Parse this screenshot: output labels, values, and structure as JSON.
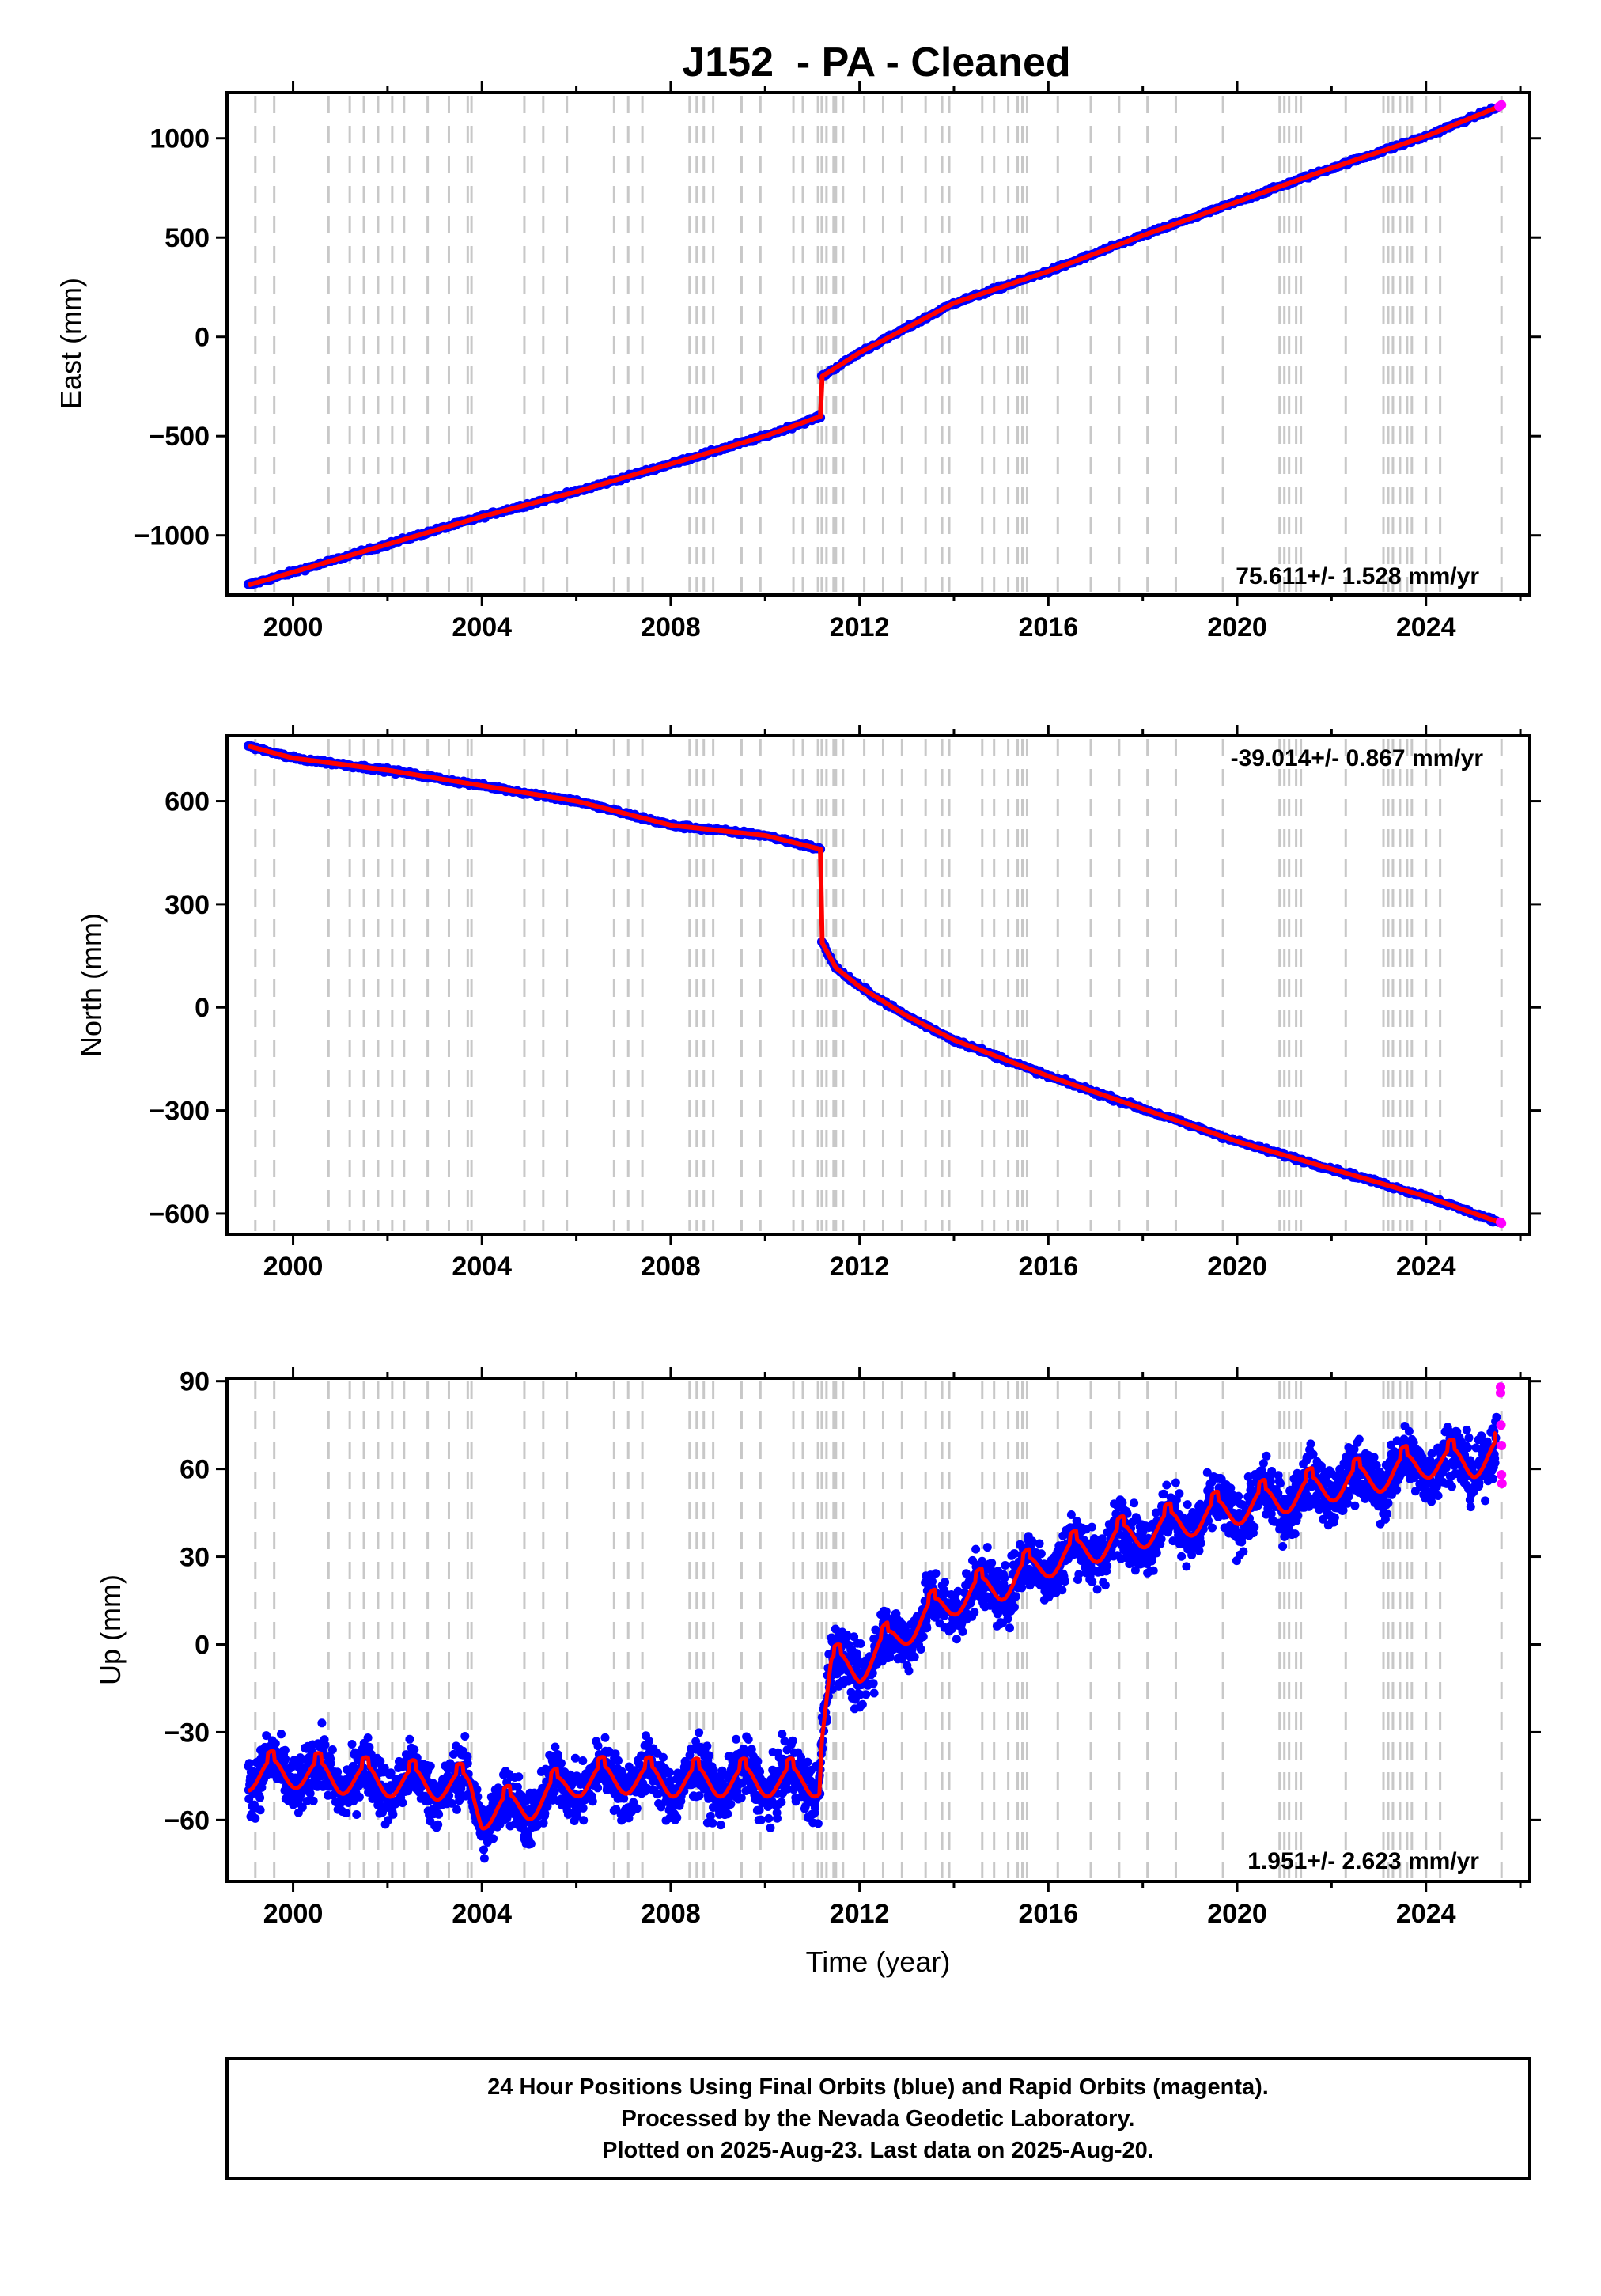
{
  "figure": {
    "title": "J152  - PA - Cleaned",
    "xlabel": "Time (year)",
    "footer": [
      "24 Hour Positions Using Final Orbits (blue) and Rapid Orbits (magenta).",
      "Processed by the Nevada Geodetic Laboratory.",
      "Plotted on 2025-Aug-23. Last data on 2025-Aug-20."
    ],
    "colors": {
      "final": "#0000ff",
      "rapid": "#ff00ff",
      "model": "#ff0000",
      "steps": "#c8c8c8"
    }
  },
  "chart_data": [
    {
      "type": "scatter",
      "component": "east",
      "ylabel": "East (mm)",
      "xlim": [
        1998.6,
        2026.2
      ],
      "ylim": [
        -1300,
        1230
      ],
      "xticks": [
        2000,
        2004,
        2008,
        2012,
        2016,
        2020,
        2024
      ],
      "yticks": [
        -1000,
        -500,
        0,
        500,
        1000
      ],
      "rate_label": "75.611+/- 1.528 mm/yr",
      "rate_position": "bottom-right",
      "series": [
        {
          "role": "final",
          "x": [
            1999.05,
            2000.0,
            2002.0,
            2004.0,
            2006.0,
            2008.0,
            2010.0,
            2011.18,
            2011.2,
            2012.0,
            2014.0,
            2016.0,
            2018.0,
            2020.0,
            2022.0,
            2024.0,
            2025.5
          ],
          "y": [
            -1250,
            -1185,
            -1045,
            -905,
            -780,
            -640,
            -500,
            -400,
            -200,
            -80,
            170,
            330,
            510,
            680,
            850,
            1010,
            1155
          ]
        },
        {
          "role": "rapid",
          "x": [
            2025.55,
            2025.6
          ],
          "y": [
            1160,
            1168
          ]
        }
      ]
    },
    {
      "type": "scatter",
      "component": "north",
      "ylabel": "North (mm)",
      "xlim": [
        1998.6,
        2026.2
      ],
      "ylim": [
        -660,
        790
      ],
      "xticks": [
        2000,
        2004,
        2008,
        2012,
        2016,
        2020,
        2024
      ],
      "yticks": [
        -600,
        -300,
        0,
        300,
        600
      ],
      "rate_label": "-39.014+/- 0.867 mm/yr",
      "rate_position": "top-right",
      "series": [
        {
          "role": "final",
          "x": [
            1999.05,
            2000.0,
            2002.0,
            2004.0,
            2006.0,
            2008.0,
            2010.0,
            2011.18,
            2011.2,
            2011.5,
            2012.0,
            2013.0,
            2014.0,
            2016.0,
            2018.0,
            2020.0,
            2022.0,
            2024.0,
            2025.55
          ],
          "y": [
            760,
            725,
            690,
            645,
            600,
            530,
            500,
            460,
            190,
            115,
            60,
            -25,
            -95,
            -200,
            -295,
            -390,
            -470,
            -550,
            -625
          ]
        },
        {
          "role": "rapid",
          "x": [
            2025.58,
            2025.6
          ],
          "y": [
            -625,
            -628
          ]
        }
      ]
    },
    {
      "type": "scatter",
      "component": "up",
      "ylabel": "Up (mm)",
      "xlim": [
        1998.6,
        2026.2
      ],
      "ylim": [
        -81,
        91
      ],
      "xticks": [
        2000,
        2004,
        2008,
        2012,
        2016,
        2020,
        2024
      ],
      "yticks": [
        -60,
        -30,
        0,
        30,
        60,
        90
      ],
      "rate_label": "1.951+/- 2.623 mm/yr",
      "rate_position": "bottom-right",
      "series": [
        {
          "role": "final",
          "x": [
            1999.05,
            2000.0,
            2001.0,
            2002.0,
            2003.0,
            2003.75,
            2004.0,
            2005.0,
            2006.0,
            2007.0,
            2008.0,
            2009.0,
            2010.0,
            2011.15,
            2011.2,
            2011.4,
            2012.0,
            2013.0,
            2014.0,
            2015.0,
            2016.0,
            2017.0,
            2018.0,
            2019.0,
            2020.0,
            2021.0,
            2022.0,
            2023.0,
            2024.0,
            2025.0,
            2025.5
          ],
          "y": [
            -45,
            -44,
            -46,
            -47,
            -48,
            -49,
            -58,
            -55,
            -47,
            -46,
            -47,
            -47,
            -47,
            -47,
            -30,
            -8,
            -8,
            5,
            15,
            20,
            28,
            33,
            38,
            42,
            46,
            50,
            54,
            57,
            62,
            62,
            65
          ]
        },
        {
          "role": "rapid",
          "x": [
            2025.58,
            2025.58,
            2025.59,
            2025.6,
            2025.6,
            2025.61
          ],
          "y": [
            88,
            86,
            75,
            68,
            58,
            55
          ]
        }
      ]
    }
  ],
  "step_epochs": [
    1999.2,
    1999.6,
    2000.75,
    2001.2,
    2001.5,
    2001.8,
    2002.1,
    2002.35,
    2002.85,
    2003.3,
    2003.7,
    2003.78,
    2004.9,
    2005.3,
    2005.8,
    2006.8,
    2007.1,
    2007.4,
    2008.4,
    2008.55,
    2008.7,
    2008.9,
    2009.5,
    2009.9,
    2010.6,
    2010.8,
    2011.12,
    2011.2,
    2011.3,
    2011.45,
    2011.5,
    2011.65,
    2012.1,
    2012.5,
    2012.9,
    2013.4,
    2013.75,
    2013.9,
    2014.6,
    2014.85,
    2015.15,
    2015.35,
    2015.45,
    2015.55,
    2016.2,
    2016.9,
    2017.5,
    2018.1,
    2018.7,
    2019.7,
    2020.9,
    2021.0,
    2021.1,
    2021.25,
    2021.35,
    2022.3,
    2023.1,
    2023.2,
    2023.3,
    2023.45,
    2023.6,
    2023.7,
    2024.0,
    2024.3,
    2025.6
  ]
}
